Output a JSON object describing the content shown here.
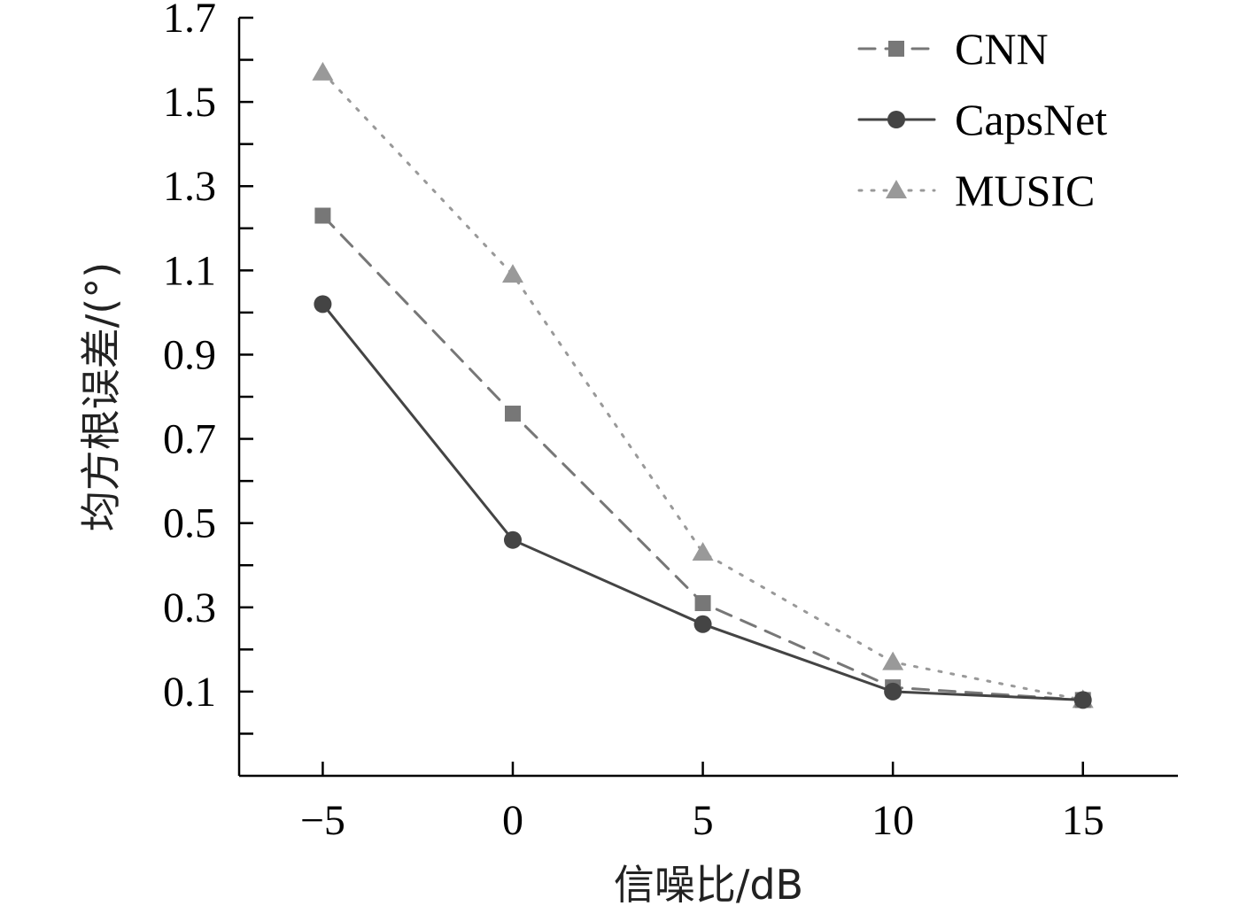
{
  "chart_data": {
    "type": "line",
    "xlabel": "信噪比/dB",
    "ylabel": "均方根误差/(°)",
    "x": [
      -5,
      0,
      5,
      10,
      15
    ],
    "x_tick_labels": [
      "−5",
      "0",
      "5",
      "10",
      "15"
    ],
    "xlim": [
      -7.2,
      17.5
    ],
    "y_tick_labels": [
      "0.1",
      "0.3",
      "0.5",
      "0.7",
      "0.9",
      "1.1",
      "1.3",
      "1.5",
      "1.7"
    ],
    "y_ticks": [
      0.1,
      0.3,
      0.5,
      0.7,
      0.9,
      1.1,
      1.3,
      1.5,
      1.7
    ],
    "ylim": [
      -0.1,
      1.7
    ],
    "grid": false,
    "legend_position": "top-right",
    "series": [
      {
        "name": "CNN",
        "values": [
          1.23,
          0.76,
          0.31,
          0.11,
          0.08
        ],
        "color": "#777777",
        "line_style": "dashed",
        "marker": "square"
      },
      {
        "name": "CapsNet",
        "values": [
          1.02,
          0.46,
          0.26,
          0.1,
          0.08
        ],
        "color": "#444444",
        "line_style": "solid",
        "marker": "circle"
      },
      {
        "name": "MUSIC",
        "values": [
          1.57,
          1.09,
          0.43,
          0.17,
          0.08
        ],
        "color": "#999999",
        "line_style": "dotted",
        "marker": "triangle"
      }
    ]
  }
}
